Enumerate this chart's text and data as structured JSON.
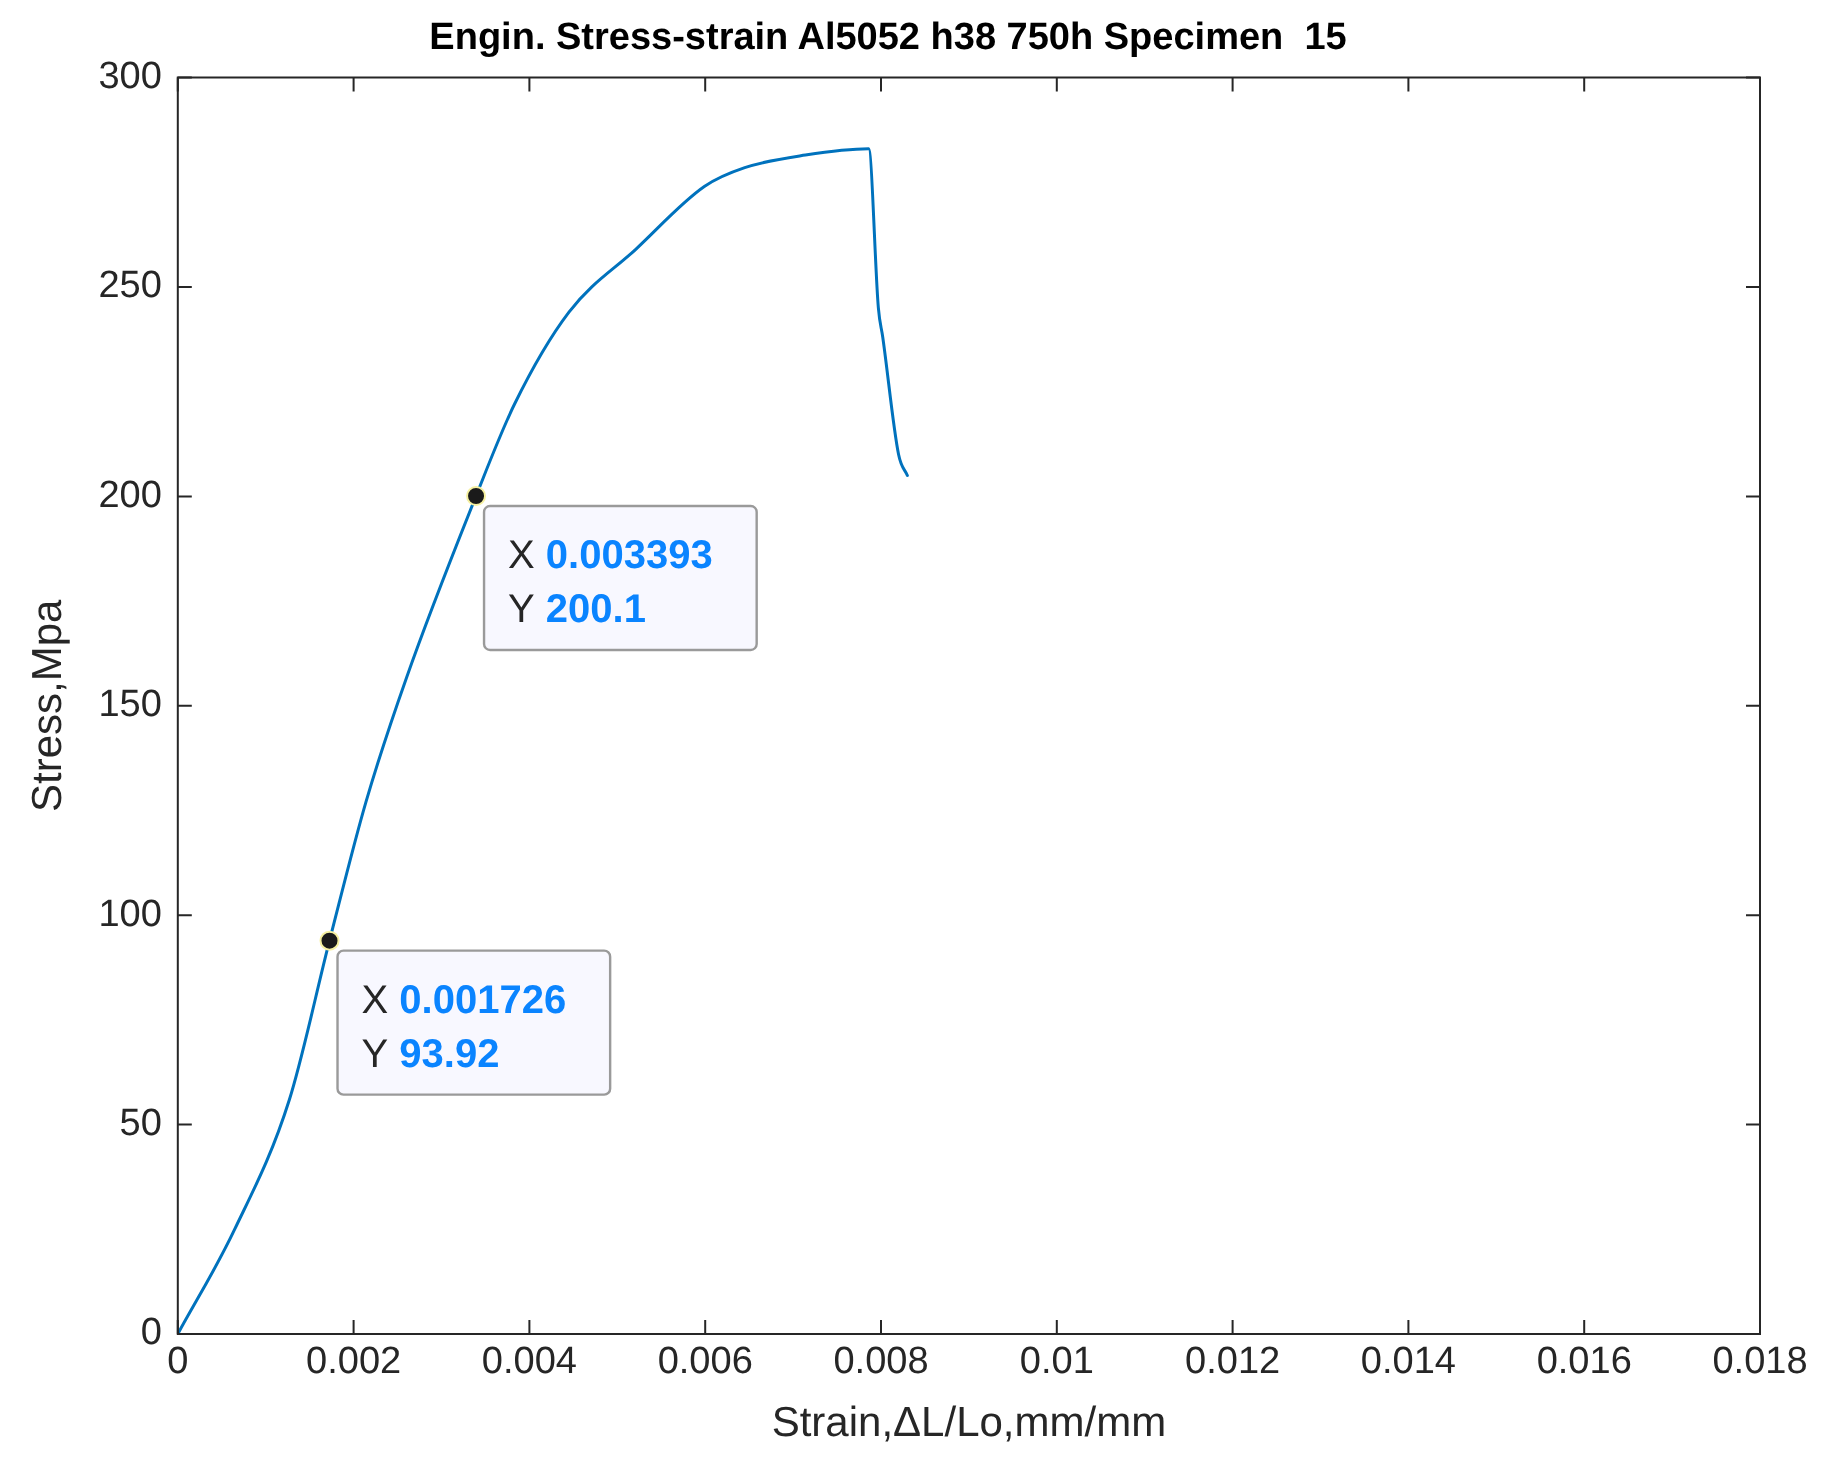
{
  "chart_data": {
    "type": "line",
    "title": "Engin. Stress-strain Al5052 h38 750h Specimen  15",
    "xlabel": "Strain,ΔL/Lo,mm/mm",
    "ylabel": "Stress,Mpa",
    "series": [
      {
        "color": "#0072bd",
        "x": [
          0,
          0.000645,
          0.00127,
          0.001726,
          0.00214,
          0.0026,
          0.003393,
          0.00383,
          0.00445,
          0.00521,
          0.00599,
          0.00645,
          0.00714,
          0.00786,
          0.00797,
          0.00802,
          0.0082,
          0.0083
        ],
        "values": [
          0,
          24.9,
          56,
          93.92,
          127,
          156.6,
          200.1,
          222,
          244,
          259,
          274,
          278.5,
          281.5,
          283,
          245,
          238,
          210,
          205
        ]
      }
    ],
    "xlim": [
      0,
      0.018
    ],
    "xticks": [
      0,
      0.002,
      0.004,
      0.006,
      0.008,
      0.01,
      0.012,
      0.014,
      0.016,
      0.018
    ],
    "ylim": [
      0,
      300
    ],
    "yticks": [
      0,
      50,
      100,
      150,
      200,
      250,
      300
    ],
    "grid": false,
    "legend": false,
    "marker": "none",
    "line_style": "solid",
    "annotations": [
      {
        "text": "X 0.001726\nY 93.92",
        "x": 0.001726,
        "y": 93.92
      },
      {
        "text": "X 0.003393\nY 200.1",
        "x": 0.003393,
        "y": 200.1
      }
    ]
  }
}
